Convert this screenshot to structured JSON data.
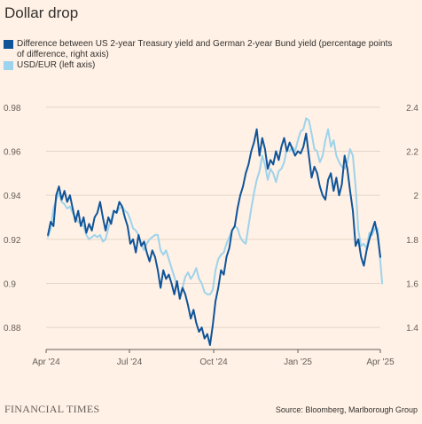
{
  "title": "Dollar drop",
  "legend": [
    {
      "label": "Difference between US 2-year Treasury yield and German 2-year Bund yield (percentage points of difference, right axis)",
      "color": "#0f5499"
    },
    {
      "label": "USD/EUR (left axis)",
      "color": "#9dd3ec"
    }
  ],
  "footer": {
    "brand": "FINANCIAL TIMES",
    "source": "Source: Bloomberg, Marlborough Group"
  },
  "chart_data": {
    "type": "line",
    "x_ticks": [
      {
        "label": "Apr '24",
        "date": "2024-04-01"
      },
      {
        "label": "Jul '24",
        "date": "2024-07-01"
      },
      {
        "label": "Oct '24",
        "date": "2024-10-01"
      },
      {
        "label": "Jan '25",
        "date": "2025-01-01"
      },
      {
        "label": "Apr '25",
        "date": "2025-04-01"
      }
    ],
    "xlim": [
      "2024-04-01",
      "2025-04-01"
    ],
    "left_axis": {
      "ylim": [
        0.87,
        0.99
      ],
      "ticks": [
        "0.88",
        "0.9",
        "0.92",
        "0.94",
        "0.96",
        "0.98"
      ]
    },
    "right_axis": {
      "ylim": [
        1.3,
        2.5
      ],
      "ticks": [
        "1.4",
        "1.6",
        "1.8",
        "2",
        "2.2",
        "2.4"
      ]
    },
    "grid": true,
    "series": [
      {
        "name": "Difference between US 2-year Treasury yield and German 2-year Bund yield (percentage points of difference, right axis)",
        "axis": "right",
        "color": "#0f5499",
        "points": [
          [
            "2024-04-03",
            1.82
          ],
          [
            "2024-04-06",
            1.88
          ],
          [
            "2024-04-09",
            1.86
          ],
          [
            "2024-04-12",
            2.0
          ],
          [
            "2024-04-15",
            2.04
          ],
          [
            "2024-04-18",
            1.98
          ],
          [
            "2024-04-21",
            2.02
          ],
          [
            "2024-04-24",
            1.97
          ],
          [
            "2024-04-27",
            2.0
          ],
          [
            "2024-04-30",
            1.94
          ],
          [
            "2024-05-03",
            1.88
          ],
          [
            "2024-05-06",
            1.93
          ],
          [
            "2024-05-09",
            1.86
          ],
          [
            "2024-05-12",
            1.9
          ],
          [
            "2024-05-15",
            1.83
          ],
          [
            "2024-05-18",
            1.87
          ],
          [
            "2024-05-21",
            1.84
          ],
          [
            "2024-05-24",
            1.9
          ],
          [
            "2024-05-27",
            1.92
          ],
          [
            "2024-05-30",
            1.97
          ],
          [
            "2024-06-02",
            1.9
          ],
          [
            "2024-06-05",
            1.84
          ],
          [
            "2024-06-08",
            1.9
          ],
          [
            "2024-06-11",
            1.87
          ],
          [
            "2024-06-14",
            1.93
          ],
          [
            "2024-06-17",
            1.92
          ],
          [
            "2024-06-20",
            1.97
          ],
          [
            "2024-06-23",
            1.95
          ],
          [
            "2024-06-26",
            1.9
          ],
          [
            "2024-06-29",
            1.86
          ],
          [
            "2024-07-02",
            1.78
          ],
          [
            "2024-07-05",
            1.8
          ],
          [
            "2024-07-08",
            1.74
          ],
          [
            "2024-07-11",
            1.82
          ],
          [
            "2024-07-14",
            1.77
          ],
          [
            "2024-07-17",
            1.79
          ],
          [
            "2024-07-20",
            1.74
          ],
          [
            "2024-07-23",
            1.7
          ],
          [
            "2024-07-26",
            1.75
          ],
          [
            "2024-07-29",
            1.72
          ],
          [
            "2024-08-01",
            1.66
          ],
          [
            "2024-08-04",
            1.58
          ],
          [
            "2024-08-07",
            1.66
          ],
          [
            "2024-08-10",
            1.62
          ],
          [
            "2024-08-13",
            1.64
          ],
          [
            "2024-08-16",
            1.6
          ],
          [
            "2024-08-19",
            1.55
          ],
          [
            "2024-08-22",
            1.61
          ],
          [
            "2024-08-25",
            1.53
          ],
          [
            "2024-08-28",
            1.58
          ],
          [
            "2024-08-31",
            1.55
          ],
          [
            "2024-09-03",
            1.5
          ],
          [
            "2024-09-06",
            1.44
          ],
          [
            "2024-09-09",
            1.48
          ],
          [
            "2024-09-12",
            1.42
          ],
          [
            "2024-09-15",
            1.38
          ],
          [
            "2024-09-18",
            1.4
          ],
          [
            "2024-09-21",
            1.35
          ],
          [
            "2024-09-24",
            1.37
          ],
          [
            "2024-09-27",
            1.32
          ],
          [
            "2024-09-30",
            1.41
          ],
          [
            "2024-10-03",
            1.52
          ],
          [
            "2024-10-06",
            1.58
          ],
          [
            "2024-10-09",
            1.66
          ],
          [
            "2024-10-12",
            1.64
          ],
          [
            "2024-10-15",
            1.72
          ],
          [
            "2024-10-18",
            1.76
          ],
          [
            "2024-10-21",
            1.84
          ],
          [
            "2024-10-24",
            1.86
          ],
          [
            "2024-10-27",
            1.94
          ],
          [
            "2024-10-30",
            2.0
          ],
          [
            "2024-11-02",
            2.04
          ],
          [
            "2024-11-05",
            2.1
          ],
          [
            "2024-11-08",
            2.14
          ],
          [
            "2024-11-11",
            2.2
          ],
          [
            "2024-11-14",
            2.24
          ],
          [
            "2024-11-17",
            2.3
          ],
          [
            "2024-11-20",
            2.18
          ],
          [
            "2024-11-23",
            2.26
          ],
          [
            "2024-11-26",
            2.21
          ],
          [
            "2024-11-29",
            2.12
          ],
          [
            "2024-12-02",
            2.16
          ],
          [
            "2024-12-05",
            2.14
          ],
          [
            "2024-12-08",
            2.2
          ],
          [
            "2024-12-11",
            2.16
          ],
          [
            "2024-12-14",
            2.22
          ],
          [
            "2024-12-17",
            2.26
          ],
          [
            "2024-12-20",
            2.2
          ],
          [
            "2024-12-23",
            2.24
          ],
          [
            "2024-12-26",
            2.21
          ],
          [
            "2024-12-29",
            2.18
          ],
          [
            "2025-01-01",
            2.2
          ],
          [
            "2025-01-04",
            2.19
          ],
          [
            "2025-01-07",
            2.22
          ],
          [
            "2025-01-10",
            2.28
          ],
          [
            "2025-01-13",
            2.18
          ],
          [
            "2025-01-16",
            2.08
          ],
          [
            "2025-01-19",
            2.13
          ],
          [
            "2025-01-22",
            2.1
          ],
          [
            "2025-01-25",
            2.04
          ],
          [
            "2025-01-28",
            2.0
          ],
          [
            "2025-01-31",
            1.98
          ],
          [
            "2025-02-03",
            2.07
          ],
          [
            "2025-02-06",
            2.1
          ],
          [
            "2025-02-09",
            2.02
          ],
          [
            "2025-02-12",
            2.08
          ],
          [
            "2025-02-15",
            2.0
          ],
          [
            "2025-02-18",
            2.05
          ],
          [
            "2025-02-21",
            2.18
          ],
          [
            "2025-02-24",
            2.12
          ],
          [
            "2025-02-27",
            2.02
          ],
          [
            "2025-03-02",
            1.93
          ],
          [
            "2025-03-05",
            1.77
          ],
          [
            "2025-03-08",
            1.8
          ],
          [
            "2025-03-11",
            1.72
          ],
          [
            "2025-03-14",
            1.68
          ],
          [
            "2025-03-17",
            1.75
          ],
          [
            "2025-03-20",
            1.8
          ],
          [
            "2025-03-23",
            1.84
          ],
          [
            "2025-03-26",
            1.88
          ],
          [
            "2025-03-29",
            1.82
          ],
          [
            "2025-04-01",
            1.72
          ]
        ]
      },
      {
        "name": "USD/EUR (left axis)",
        "axis": "left",
        "color": "#9dd3ec",
        "points": [
          [
            "2024-04-03",
            0.921
          ],
          [
            "2024-04-06",
            0.925
          ],
          [
            "2024-04-09",
            0.934
          ],
          [
            "2024-04-12",
            0.938
          ],
          [
            "2024-04-15",
            0.941
          ],
          [
            "2024-04-18",
            0.937
          ],
          [
            "2024-04-21",
            0.936
          ],
          [
            "2024-04-24",
            0.934
          ],
          [
            "2024-04-27",
            0.935
          ],
          [
            "2024-04-30",
            0.932
          ],
          [
            "2024-05-03",
            0.93
          ],
          [
            "2024-05-06",
            0.928
          ],
          [
            "2024-05-09",
            0.927
          ],
          [
            "2024-05-12",
            0.926
          ],
          [
            "2024-05-15",
            0.922
          ],
          [
            "2024-05-18",
            0.92
          ],
          [
            "2024-05-21",
            0.921
          ],
          [
            "2024-05-24",
            0.922
          ],
          [
            "2024-05-27",
            0.921
          ],
          [
            "2024-05-30",
            0.922
          ],
          [
            "2024-06-02",
            0.919
          ],
          [
            "2024-06-05",
            0.92
          ],
          [
            "2024-06-08",
            0.925
          ],
          [
            "2024-06-11",
            0.929
          ],
          [
            "2024-06-14",
            0.933
          ],
          [
            "2024-06-17",
            0.932
          ],
          [
            "2024-06-20",
            0.934
          ],
          [
            "2024-06-23",
            0.935
          ],
          [
            "2024-06-26",
            0.933
          ],
          [
            "2024-06-29",
            0.932
          ],
          [
            "2024-07-02",
            0.929
          ],
          [
            "2024-07-05",
            0.925
          ],
          [
            "2024-07-08",
            0.924
          ],
          [
            "2024-07-11",
            0.922
          ],
          [
            "2024-07-14",
            0.918
          ],
          [
            "2024-07-17",
            0.915
          ],
          [
            "2024-07-20",
            0.918
          ],
          [
            "2024-07-23",
            0.92
          ],
          [
            "2024-07-26",
            0.921
          ],
          [
            "2024-07-29",
            0.922
          ],
          [
            "2024-08-01",
            0.922
          ],
          [
            "2024-08-04",
            0.915
          ],
          [
            "2024-08-07",
            0.913
          ],
          [
            "2024-08-10",
            0.915
          ],
          [
            "2024-08-13",
            0.911
          ],
          [
            "2024-08-16",
            0.907
          ],
          [
            "2024-08-19",
            0.903
          ],
          [
            "2024-08-22",
            0.899
          ],
          [
            "2024-08-25",
            0.895
          ],
          [
            "2024-08-28",
            0.898
          ],
          [
            "2024-08-31",
            0.903
          ],
          [
            "2024-09-03",
            0.905
          ],
          [
            "2024-09-06",
            0.902
          ],
          [
            "2024-09-09",
            0.904
          ],
          [
            "2024-09-12",
            0.907
          ],
          [
            "2024-09-15",
            0.902
          ],
          [
            "2024-09-18",
            0.9
          ],
          [
            "2024-09-21",
            0.896
          ],
          [
            "2024-09-24",
            0.895
          ],
          [
            "2024-09-27",
            0.895
          ],
          [
            "2024-09-30",
            0.897
          ],
          [
            "2024-10-03",
            0.906
          ],
          [
            "2024-10-06",
            0.911
          ],
          [
            "2024-10-09",
            0.913
          ],
          [
            "2024-10-12",
            0.914
          ],
          [
            "2024-10-15",
            0.918
          ],
          [
            "2024-10-18",
            0.921
          ],
          [
            "2024-10-21",
            0.924
          ],
          [
            "2024-10-24",
            0.926
          ],
          [
            "2024-10-27",
            0.925
          ],
          [
            "2024-10-30",
            0.921
          ],
          [
            "2024-11-02",
            0.919
          ],
          [
            "2024-11-05",
            0.918
          ],
          [
            "2024-11-08",
            0.926
          ],
          [
            "2024-11-11",
            0.934
          ],
          [
            "2024-11-14",
            0.941
          ],
          [
            "2024-11-17",
            0.947
          ],
          [
            "2024-11-20",
            0.951
          ],
          [
            "2024-11-23",
            0.958
          ],
          [
            "2024-11-26",
            0.954
          ],
          [
            "2024-11-29",
            0.947
          ],
          [
            "2024-12-02",
            0.952
          ],
          [
            "2024-12-05",
            0.95
          ],
          [
            "2024-12-08",
            0.946
          ],
          [
            "2024-12-11",
            0.951
          ],
          [
            "2024-12-14",
            0.952
          ],
          [
            "2024-12-17",
            0.955
          ],
          [
            "2024-12-20",
            0.961
          ],
          [
            "2024-12-23",
            0.96
          ],
          [
            "2024-12-26",
            0.962
          ],
          [
            "2024-12-29",
            0.96
          ],
          [
            "2025-01-01",
            0.965
          ],
          [
            "2025-01-04",
            0.969
          ],
          [
            "2025-01-07",
            0.97
          ],
          [
            "2025-01-10",
            0.975
          ],
          [
            "2025-01-13",
            0.974
          ],
          [
            "2025-01-16",
            0.968
          ],
          [
            "2025-01-19",
            0.961
          ],
          [
            "2025-01-22",
            0.96
          ],
          [
            "2025-01-25",
            0.955
          ],
          [
            "2025-01-28",
            0.958
          ],
          [
            "2025-01-31",
            0.965
          ],
          [
            "2025-02-03",
            0.97
          ],
          [
            "2025-02-06",
            0.962
          ],
          [
            "2025-02-09",
            0.965
          ],
          [
            "2025-02-12",
            0.958
          ],
          [
            "2025-02-15",
            0.955
          ],
          [
            "2025-02-18",
            0.953
          ],
          [
            "2025-02-21",
            0.952
          ],
          [
            "2025-02-24",
            0.955
          ],
          [
            "2025-02-27",
            0.961
          ],
          [
            "2025-03-02",
            0.958
          ],
          [
            "2025-03-05",
            0.944
          ],
          [
            "2025-03-08",
            0.924
          ],
          [
            "2025-03-11",
            0.917
          ],
          [
            "2025-03-14",
            0.918
          ],
          [
            "2025-03-17",
            0.916
          ],
          [
            "2025-03-20",
            0.923
          ],
          [
            "2025-03-23",
            0.922
          ],
          [
            "2025-03-26",
            0.925
          ],
          [
            "2025-03-29",
            0.925
          ],
          [
            "2025-04-01",
            0.91
          ],
          [
            "2025-04-03",
            0.9
          ]
        ]
      }
    ]
  }
}
